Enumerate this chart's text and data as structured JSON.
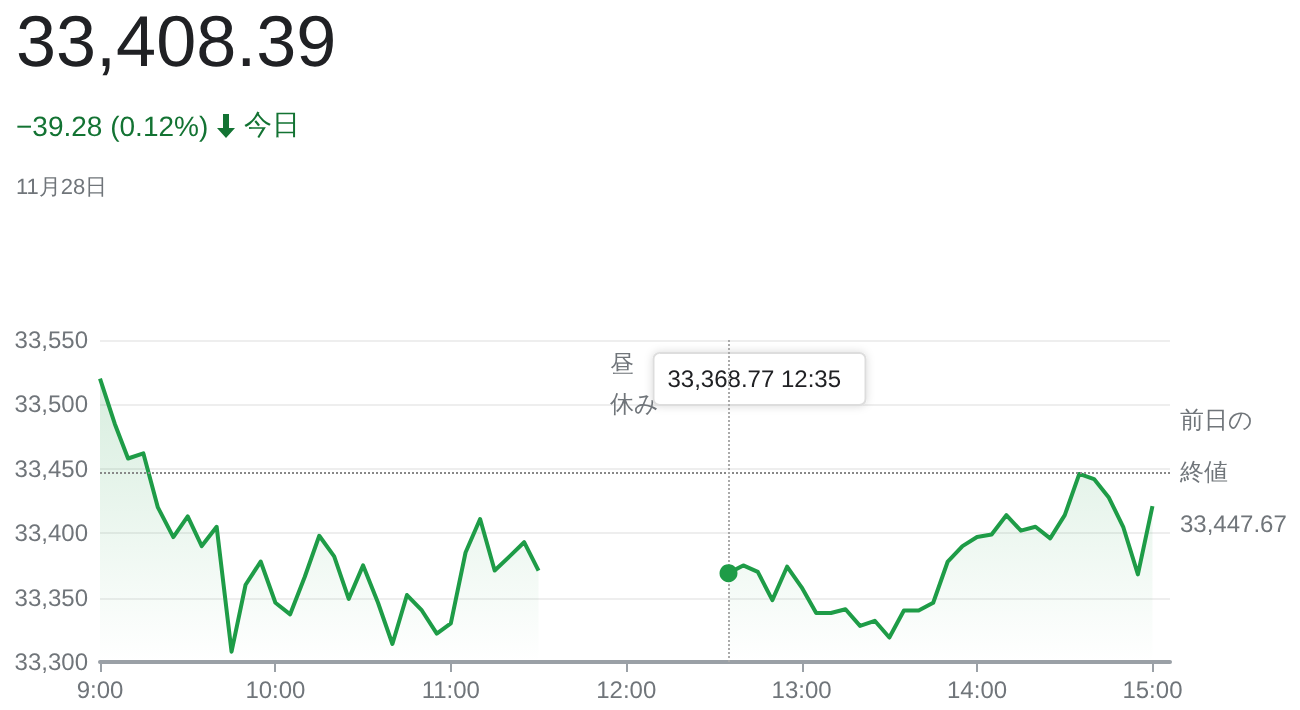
{
  "chart_data": {
    "type": "area",
    "title": "33,408.39",
    "subtitle": "−39.28 (0.12%)",
    "annotations": [
      "今日",
      "11月28日",
      "昼休み",
      "33,368.77 12:35"
    ],
    "x": [
      9.0,
      9.084,
      9.16,
      9.247,
      9.33,
      9.418,
      9.5,
      9.58,
      9.665,
      9.75,
      9.83,
      9.916,
      10.0,
      10.084,
      10.167,
      10.25,
      10.335,
      10.418,
      10.5,
      10.585,
      10.667,
      10.75,
      10.835,
      10.92,
      11.0,
      11.084,
      11.167,
      11.25,
      11.335,
      11.418,
      11.5,
      12.0,
      12.583,
      12.667,
      12.75,
      12.833,
      12.917,
      13.0,
      13.083,
      13.167,
      13.25,
      13.333,
      13.417,
      13.5,
      13.583,
      13.667,
      13.75,
      13.833,
      13.917,
      14.0,
      14.083,
      14.167,
      14.25,
      14.333,
      14.417,
      14.5,
      14.583,
      14.667,
      14.75,
      14.833,
      14.917,
      15.0
    ],
    "series": [
      {
        "color": "#1e9c47",
        "values": [
          33520,
          33485,
          33458,
          33462,
          33420,
          33397,
          33413,
          33390,
          33405,
          33308,
          33360,
          33378,
          33346,
          33337,
          33366,
          33398,
          33382,
          33349,
          33375,
          33346,
          33314,
          33352,
          33340,
          33322,
          33330,
          33385,
          33411,
          33371,
          33382,
          33393,
          33371,
          null,
          33369,
          33375,
          33370,
          33348,
          33374,
          33358,
          33338,
          33338,
          33341,
          33328,
          33332,
          33319,
          33340,
          33340,
          33346,
          33378,
          33390,
          33397,
          33399,
          33414,
          33402,
          33405,
          33396,
          33414,
          33446,
          33442,
          33428,
          33405,
          33368,
          33421
        ]
      }
    ],
    "xlim": [
      9,
      15.1
    ],
    "xticks": [
      {
        "value": 9,
        "label": "9:00"
      },
      {
        "value": 10,
        "label": "10:00"
      },
      {
        "value": 11,
        "label": "11:00"
      },
      {
        "value": 12,
        "label": "12:00"
      },
      {
        "value": 13,
        "label": "13:00"
      },
      {
        "value": 14,
        "label": "14:00"
      },
      {
        "value": 15,
        "label": "15:00"
      }
    ],
    "ylim": [
      33300,
      33550
    ],
    "yticks": [
      {
        "value": 33300,
        "label": "33,300"
      },
      {
        "value": 33350,
        "label": "33,350"
      },
      {
        "value": 33400,
        "label": "33,400"
      },
      {
        "value": 33450,
        "label": "33,450"
      },
      {
        "value": 33500,
        "label": "33,500"
      },
      {
        "value": 33550,
        "label": "33,550"
      }
    ],
    "ref_lines": [
      {
        "axis": "y",
        "value": 33447.67,
        "label": "前日の終値33,447.67",
        "color": "#888888",
        "line_style": "dotted"
      },
      {
        "axis": "x",
        "value": 12.583,
        "color": "#aaaaaa",
        "line_style": "dotted"
      }
    ],
    "grid": "y",
    "marker": "none",
    "line_style": "solid"
  }
}
